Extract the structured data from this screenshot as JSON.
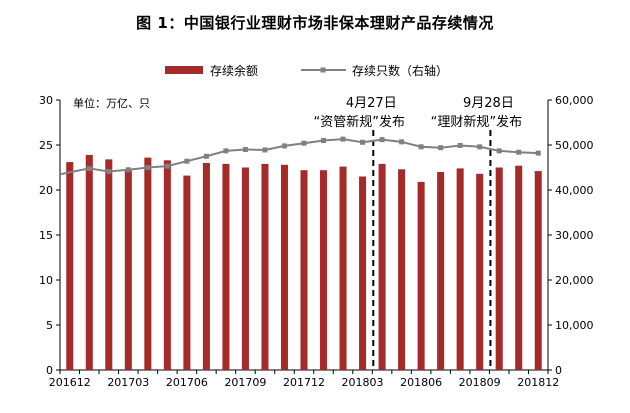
{
  "title": "图 1：中国银行业理财市场非保本理财产品存续情况",
  "chart_data": {
    "type": "bar+line",
    "unit_label": "单位：万亿、只",
    "categories": [
      "201612",
      "201701",
      "201702",
      "201703",
      "201704",
      "201705",
      "201706",
      "201707",
      "201708",
      "201709",
      "201710",
      "201711",
      "201712",
      "201801",
      "201802",
      "201803",
      "201804",
      "201805",
      "201806",
      "201807",
      "201808",
      "201809",
      "201810",
      "201811",
      "201812"
    ],
    "x_tick_labels": [
      "201612",
      "201703",
      "201706",
      "201709",
      "201712",
      "201803",
      "201806",
      "201809",
      "201812"
    ],
    "series": [
      {
        "name": "存续余额",
        "type": "bar",
        "axis": "left",
        "color": "#a52a2a",
        "values": [
          23.1,
          23.9,
          23.4,
          22.2,
          23.6,
          23.3,
          21.6,
          23.0,
          22.9,
          22.5,
          22.9,
          22.8,
          22.2,
          22.2,
          22.6,
          21.5,
          22.9,
          22.3,
          20.9,
          22.0,
          22.4,
          21.8,
          22.5,
          22.7,
          22.1
        ]
      },
      {
        "name": "存续只数（右轴）",
        "type": "line",
        "axis": "right",
        "color": "#808080",
        "values": [
          43500,
          44800,
          44100,
          44500,
          45000,
          45300,
          46400,
          47500,
          48700,
          49000,
          48900,
          49800,
          50400,
          51000,
          51300,
          50600,
          51200,
          50700,
          49600,
          49400,
          49900,
          49600,
          48700,
          48400,
          48200
        ]
      }
    ],
    "y_left": {
      "min": 0,
      "max": 30,
      "ticks": [
        "0",
        "5",
        "10",
        "15",
        "20",
        "25",
        "30"
      ]
    },
    "y_right": {
      "min": 0,
      "max": 60000,
      "ticks": [
        "0",
        "10,000",
        "20,000",
        "30,000",
        "40,000",
        "50,000",
        "60,000"
      ]
    },
    "annotations": [
      {
        "category": "201803",
        "line1": "4月27日",
        "line2": "“资管新规”发布"
      },
      {
        "category": "201809",
        "line1": "9月28日",
        "line2": "“理财新规”发布"
      }
    ],
    "legend_position": "top",
    "grid": false
  }
}
